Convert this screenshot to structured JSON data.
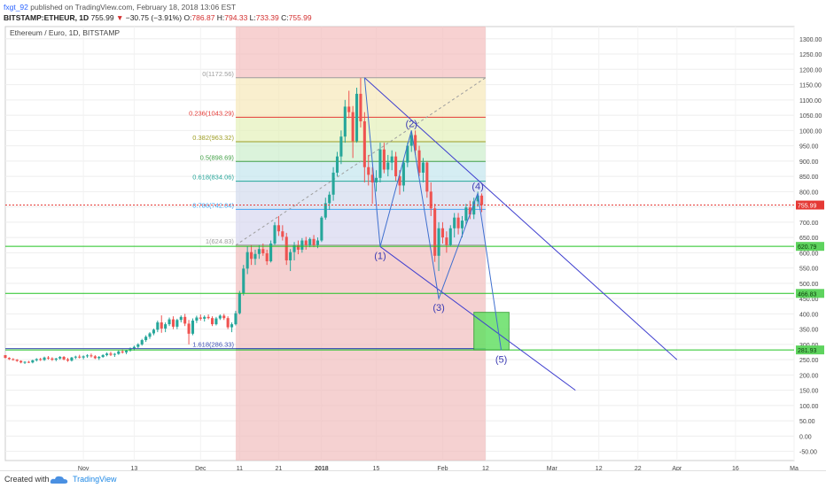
{
  "header": {
    "user": "fxgt_92",
    "published": "published on TradingView.com, February 18, 2018 13:06 EST",
    "symbol": "BITSTAMP:ETHEUR, 1D",
    "last": "755.99",
    "change_arrow": "▼",
    "change": "−30.75 (−3.91%)",
    "o_label": "O:",
    "o": "786.87",
    "h_label": "H:",
    "h": "794.33",
    "l_label": "L:",
    "l": "733.39",
    "c_label": "C:",
    "c": "755.99"
  },
  "colors": {
    "up": "#26a69a",
    "down": "#ef5350",
    "channel": "#3f3fcf",
    "green_line": "#22c322",
    "price_badge": "#e53935"
  },
  "chart_data": {
    "type": "candlestick",
    "title": "Ethereum / Euro, 1D, BITSTAMP",
    "ylim": [
      -80,
      1340
    ],
    "y_ticks": [
      "1300.00",
      "1250.00",
      "1200.00",
      "1150.00",
      "1100.00",
      "1050.00",
      "1000.00",
      "950.00",
      "900.00",
      "850.00",
      "800.00",
      "750.00",
      "700.00",
      "650.00",
      "600.00",
      "550.00",
      "500.00",
      "450.00",
      "400.00",
      "350.00",
      "300.00",
      "250.00",
      "200.00",
      "150.00",
      "100.00",
      "50.00",
      "0.00",
      "-50.00"
    ],
    "x_ticks": [
      "Nov",
      "13",
      "Dec",
      "11",
      "21",
      "2018",
      "15",
      "Feb",
      "12",
      "Mar",
      "12",
      "22",
      "Apr",
      "16",
      "Ma"
    ],
    "x_tick_days": [
      -61,
      -48,
      -31,
      -21,
      -11,
      0,
      14,
      31,
      42,
      59,
      71,
      81,
      91,
      106,
      121
    ],
    "x_range_days": [
      -81,
      121
    ],
    "candles": [
      [
        -81,
        265,
        262,
        254,
        256
      ],
      [
        -80,
        256,
        258,
        249,
        252
      ],
      [
        -79,
        252,
        255,
        247,
        250
      ],
      [
        -78,
        250,
        252,
        243,
        246
      ],
      [
        -77,
        246,
        248,
        238,
        241
      ],
      [
        -76,
        241,
        245,
        236,
        243
      ],
      [
        -75,
        243,
        246,
        239,
        241
      ],
      [
        -74,
        241,
        250,
        238,
        248
      ],
      [
        -73,
        248,
        255,
        244,
        252
      ],
      [
        -72,
        252,
        256,
        246,
        249
      ],
      [
        -71,
        249,
        260,
        246,
        257
      ],
      [
        -70,
        257,
        262,
        250,
        254
      ],
      [
        -69,
        254,
        258,
        246,
        250
      ],
      [
        -68,
        250,
        256,
        245,
        254
      ],
      [
        -67,
        254,
        262,
        250,
        259
      ],
      [
        -66,
        259,
        262,
        248,
        251
      ],
      [
        -65,
        251,
        256,
        243,
        247
      ],
      [
        -64,
        247,
        259,
        244,
        257
      ],
      [
        -63,
        257,
        263,
        252,
        260
      ],
      [
        -62,
        260,
        266,
        254,
        257
      ],
      [
        -61,
        257,
        264,
        251,
        261
      ],
      [
        -60,
        261,
        268,
        256,
        264
      ],
      [
        -59,
        264,
        270,
        257,
        261
      ],
      [
        -58,
        261,
        265,
        252,
        255
      ],
      [
        -57,
        255,
        262,
        249,
        259
      ],
      [
        -56,
        259,
        268,
        256,
        265
      ],
      [
        -55,
        265,
        274,
        261,
        270
      ],
      [
        -54,
        270,
        276,
        262,
        266
      ],
      [
        -53,
        266,
        272,
        259,
        269
      ],
      [
        -52,
        269,
        280,
        266,
        277
      ],
      [
        -51,
        277,
        284,
        270,
        274
      ],
      [
        -50,
        274,
        282,
        268,
        280
      ],
      [
        -49,
        280,
        290,
        276,
        287
      ],
      [
        -48,
        287,
        296,
        280,
        292
      ],
      [
        -47,
        292,
        304,
        288,
        300
      ],
      [
        -46,
        300,
        318,
        296,
        314
      ],
      [
        -45,
        314,
        330,
        308,
        325
      ],
      [
        -44,
        325,
        340,
        318,
        336
      ],
      [
        -43,
        336,
        352,
        330,
        348
      ],
      [
        -42,
        348,
        378,
        340,
        372
      ],
      [
        -41,
        372,
        395,
        338,
        352
      ],
      [
        -40,
        352,
        372,
        340,
        366
      ],
      [
        -39,
        366,
        388,
        360,
        382
      ],
      [
        -38,
        382,
        392,
        350,
        358
      ],
      [
        -37,
        358,
        384,
        350,
        380
      ],
      [
        -36,
        380,
        395,
        372,
        390
      ],
      [
        -35,
        390,
        400,
        360,
        368
      ],
      [
        -34,
        368,
        380,
        300,
        335
      ],
      [
        -33,
        335,
        385,
        330,
        378
      ],
      [
        -32,
        378,
        394,
        370,
        388
      ],
      [
        -31,
        388,
        398,
        378,
        384
      ],
      [
        -30,
        384,
        395,
        375,
        390
      ],
      [
        -29,
        390,
        398,
        382,
        386
      ],
      [
        -28,
        386,
        392,
        360,
        366
      ],
      [
        -27,
        366,
        390,
        362,
        385
      ],
      [
        -26,
        385,
        398,
        380,
        394
      ],
      [
        -25,
        394,
        400,
        380,
        386
      ],
      [
        -24,
        386,
        392,
        350,
        356
      ],
      [
        -23,
        356,
        372,
        340,
        366
      ],
      [
        -22,
        366,
        410,
        362,
        402
      ],
      [
        -21,
        402,
        475,
        398,
        468
      ],
      [
        -20,
        468,
        560,
        460,
        548
      ],
      [
        -19,
        548,
        620,
        530,
        602
      ],
      [
        -18,
        602,
        625,
        560,
        580
      ],
      [
        -17,
        580,
        610,
        560,
        596
      ],
      [
        -16,
        596,
        625,
        580,
        612
      ],
      [
        -15,
        612,
        630,
        590,
        598
      ],
      [
        -14,
        598,
        610,
        560,
        572
      ],
      [
        -13,
        572,
        640,
        568,
        630
      ],
      [
        -12,
        630,
        700,
        625,
        690
      ],
      [
        -11,
        690,
        720,
        655,
        670
      ],
      [
        -10,
        670,
        690,
        640,
        652
      ],
      [
        -9,
        652,
        665,
        560,
        575
      ],
      [
        -8,
        575,
        612,
        540,
        602
      ],
      [
        -7,
        602,
        635,
        575,
        624
      ],
      [
        -6,
        624,
        640,
        595,
        610
      ],
      [
        -5,
        610,
        648,
        600,
        640
      ],
      [
        -4,
        640,
        652,
        610,
        625
      ],
      [
        -3,
        625,
        650,
        618,
        645
      ],
      [
        -2,
        645,
        658,
        618,
        625
      ],
      [
        -1,
        625,
        650,
        615,
        640
      ],
      [
        0,
        640,
        720,
        635,
        715
      ],
      [
        1,
        715,
        780,
        708,
        762
      ],
      [
        2,
        762,
        800,
        740,
        790
      ],
      [
        3,
        790,
        880,
        770,
        862
      ],
      [
        4,
        862,
        930,
        850,
        915
      ],
      [
        5,
        915,
        1000,
        890,
        980
      ],
      [
        6,
        980,
        1100,
        960,
        1078
      ],
      [
        7,
        1078,
        1130,
        1040,
        1060
      ],
      [
        8,
        1060,
        1080,
        910,
        965
      ],
      [
        9,
        965,
        1140,
        960,
        1120
      ],
      [
        10,
        1120,
        1172,
        1010,
        1030
      ],
      [
        11,
        1030,
        1060,
        830,
        880
      ],
      [
        12,
        880,
        920,
        820,
        855
      ],
      [
        13,
        855,
        880,
        760,
        830
      ],
      [
        14,
        830,
        870,
        800,
        845
      ],
      [
        15,
        845,
        960,
        830,
        938
      ],
      [
        16,
        938,
        960,
        860,
        872
      ],
      [
        17,
        872,
        920,
        850,
        895
      ],
      [
        18,
        895,
        935,
        870,
        915
      ],
      [
        19,
        915,
        930,
        835,
        850
      ],
      [
        20,
        850,
        870,
        790,
        820
      ],
      [
        21,
        820,
        905,
        800,
        895
      ],
      [
        22,
        895,
        960,
        880,
        950
      ],
      [
        23,
        950,
        1000,
        930,
        985
      ],
      [
        24,
        985,
        1000,
        920,
        935
      ],
      [
        25,
        935,
        950,
        850,
        862
      ],
      [
        26,
        862,
        910,
        830,
        895
      ],
      [
        27,
        895,
        900,
        780,
        800
      ],
      [
        28,
        800,
        830,
        720,
        745
      ],
      [
        29,
        745,
        760,
        570,
        590
      ],
      [
        30,
        590,
        700,
        540,
        680
      ],
      [
        31,
        680,
        700,
        630,
        650
      ],
      [
        32,
        650,
        670,
        600,
        625
      ],
      [
        33,
        625,
        690,
        620,
        680
      ],
      [
        34,
        680,
        730,
        650,
        715
      ],
      [
        35,
        715,
        730,
        660,
        680
      ],
      [
        36,
        680,
        720,
        650,
        705
      ],
      [
        37,
        705,
        760,
        690,
        748
      ],
      [
        38,
        748,
        770,
        710,
        725
      ],
      [
        39,
        725,
        780,
        710,
        768
      ],
      [
        40,
        768,
        800,
        750,
        787
      ],
      [
        41,
        787,
        794,
        733,
        756
      ]
    ],
    "fib_levels": [
      {
        "label": "0(1172.56)",
        "value": 1172.56
      },
      {
        "label": "0.236(1043.29)",
        "value": 1043.29
      },
      {
        "label": "0.382(963.32)",
        "value": 963.32
      },
      {
        "label": "0.5(898.69)",
        "value": 898.69
      },
      {
        "label": "0.618(834.06)",
        "value": 834.06
      },
      {
        "label": "0.786(742.04)",
        "value": 742.04
      },
      {
        "label": "1(624.83)",
        "value": 624.83
      },
      {
        "label": "1.618(286.33)",
        "value": 286.33
      }
    ],
    "fib_day_range": [
      -22,
      42
    ],
    "wave_labels": [
      {
        "label": "(1)",
        "day": 15,
        "value": 620
      },
      {
        "label": "(2)",
        "day": 23,
        "value": 1000
      },
      {
        "label": "(3)",
        "day": 30,
        "value": 450
      },
      {
        "label": "(4)",
        "day": 40,
        "value": 795
      },
      {
        "label": "(5)",
        "day": 46,
        "value": 281
      }
    ],
    "price_badges": [
      {
        "label": "755.99",
        "value": 755.99,
        "kind": "price"
      },
      {
        "label": "620.79",
        "value": 620.79,
        "kind": "green"
      },
      {
        "label": "466.83",
        "value": 466.83,
        "kind": "green"
      },
      {
        "label": "281.93",
        "value": 281.93,
        "kind": "green"
      }
    ],
    "target_zone": [
      282,
      405
    ],
    "target_days": [
      39,
      48
    ]
  },
  "footer": {
    "created": "Created with",
    "brand": "TradingView"
  }
}
